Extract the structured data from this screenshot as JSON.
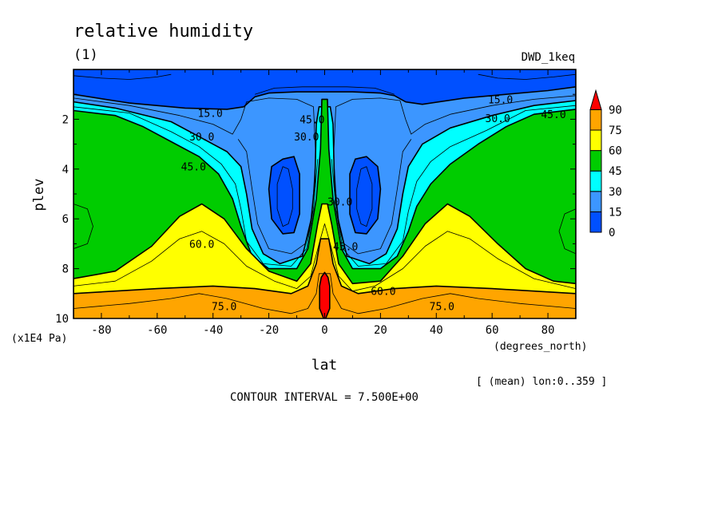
{
  "chart_data": {
    "type": "heatmap",
    "title": "relative humidity",
    "subtitle": "(1)",
    "dataset_label": "DWD_1keq",
    "xlabel": "lat",
    "x_units": "(degrees_north)",
    "ylabel": "plev",
    "y_units": "(x1E4 Pa)",
    "averaging_note": "[ (mean) lon:0..359 ]",
    "contour_interval_text": "CONTOUR INTERVAL = 7.500E+00",
    "xlim": [
      -90,
      90
    ],
    "ylim": [
      0,
      10
    ],
    "y_inverted": true,
    "x_ticks": [
      -80,
      -60,
      -40,
      -20,
      0,
      20,
      40,
      60,
      80
    ],
    "x_tick_labels": [
      "-80",
      "-60",
      "-40",
      "-20",
      "0",
      "20",
      "40",
      "60",
      "80"
    ],
    "y_ticks": [
      2,
      4,
      6,
      8,
      10
    ],
    "y_tick_labels": [
      "2",
      "4",
      "6",
      "8",
      "10"
    ],
    "colorbar": {
      "levels": [
        0,
        15,
        30,
        45,
        60,
        75,
        90
      ],
      "labels": [
        "0",
        "15",
        "30",
        "45",
        "60",
        "75",
        "90"
      ],
      "colors": [
        "#0050ff",
        "#3c96ff",
        "#00ffff",
        "#00cc00",
        "#ffff00",
        "#ffa500",
        "#ff0000"
      ],
      "extend": "max"
    },
    "contour_labels": [
      {
        "text": "15.0",
        "lat": -41,
        "plev": 1.75
      },
      {
        "text": "15.0",
        "lat": 63,
        "plev": 1.2
      },
      {
        "text": "30.0",
        "lat": -44,
        "plev": 2.7
      },
      {
        "text": "30.0",
        "lat": 62,
        "plev": 1.95
      },
      {
        "text": "45.0",
        "lat": -47,
        "plev": 3.9
      },
      {
        "text": "45.0",
        "lat": 82,
        "plev": 1.8
      },
      {
        "text": "45.0",
        "lat": -4.5,
        "plev": 2.0
      },
      {
        "text": "30.0",
        "lat": -6.5,
        "plev": 2.7
      },
      {
        "text": "30.0",
        "lat": 5.5,
        "plev": 5.3
      },
      {
        "text": "45.0",
        "lat": 7.5,
        "plev": 7.1
      },
      {
        "text": "60.0",
        "lat": -44,
        "plev": 7.0
      },
      {
        "text": "60.0",
        "lat": 21,
        "plev": 8.9
      },
      {
        "text": "75.0",
        "lat": -36,
        "plev": 9.5
      },
      {
        "text": "75.0",
        "lat": 42,
        "plev": 9.5
      }
    ]
  }
}
